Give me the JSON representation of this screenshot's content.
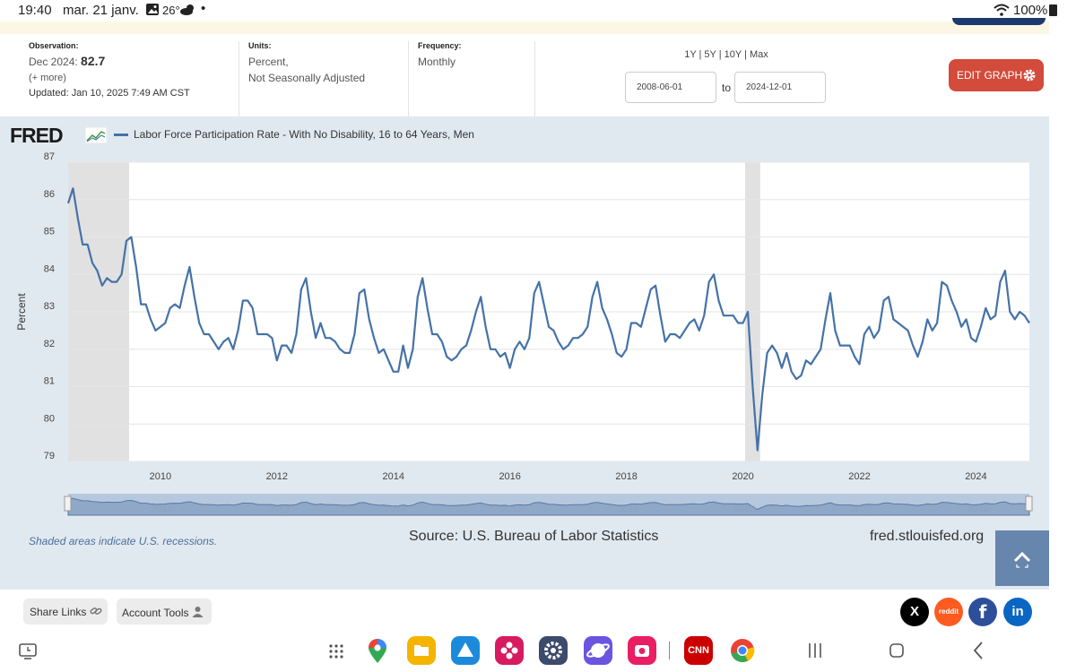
{
  "status": {
    "time": "19:40",
    "date": "mar. 21 janv.",
    "temp": "26°",
    "dot": "•",
    "battery": "100%"
  },
  "meta": {
    "observation_label": "Observation:",
    "observation_date": "Dec 2024:",
    "observation_value": "82.7",
    "more": "(+ more)",
    "updated": "Updated: Jan 10, 2025 7:49 AM CST",
    "units_label": "Units:",
    "units_line1": "Percent,",
    "units_line2": "Not Seasonally Adjusted",
    "frequency_label": "Frequency:",
    "frequency_value": "Monthly",
    "ranges": "1Y | 5Y | 10Y | Max",
    "start_date": "2008-06-01",
    "to_label": "to",
    "end_date": "2024-12-01",
    "edit_button": "EDIT GRAPH"
  },
  "chart_data": {
    "type": "line",
    "title": "Labor Force Participation Rate - With No Disability, 16 to 64 Years, Men",
    "xlabel": "",
    "ylabel": "Percent",
    "ylim": [
      79,
      87
    ],
    "yticks": [
      "79",
      "80",
      "81",
      "82",
      "83",
      "84",
      "85",
      "86",
      "87"
    ],
    "xticks": [
      "2010",
      "2012",
      "2014",
      "2016",
      "2018",
      "2020",
      "2022",
      "2024"
    ],
    "recessions": [
      [
        "2008-06-01",
        "2009-06-01"
      ],
      [
        "2020-02-01",
        "2020-04-01"
      ]
    ],
    "grid": true,
    "series": [
      {
        "name": "Labor Force Participation Rate - With No Disability, 16 to 64 Years, Men",
        "start": "2008-06",
        "frequency": "monthly",
        "values": [
          85.9,
          86.3,
          85.5,
          84.8,
          84.8,
          84.3,
          84.1,
          83.7,
          83.9,
          83.8,
          83.8,
          84.0,
          84.9,
          85.0,
          84.2,
          83.2,
          83.2,
          82.8,
          82.5,
          82.6,
          82.7,
          83.1,
          83.2,
          83.1,
          83.7,
          84.2,
          83.4,
          82.7,
          82.4,
          82.4,
          82.2,
          82.0,
          82.2,
          82.3,
          82.0,
          82.5,
          83.3,
          83.3,
          83.1,
          82.4,
          82.4,
          82.4,
          82.3,
          81.7,
          82.1,
          82.1,
          81.9,
          82.4,
          83.6,
          83.9,
          83.0,
          82.3,
          82.7,
          82.3,
          82.3,
          82.2,
          82.0,
          81.9,
          81.9,
          82.4,
          83.5,
          83.6,
          82.8,
          82.3,
          81.9,
          82.0,
          81.7,
          81.4,
          81.4,
          82.1,
          81.5,
          82.0,
          83.4,
          83.9,
          83.1,
          82.4,
          82.4,
          82.2,
          81.8,
          81.7,
          81.8,
          82.0,
          82.1,
          82.5,
          83.0,
          83.4,
          82.6,
          82.0,
          82.0,
          81.8,
          81.9,
          81.5,
          82.0,
          82.2,
          82.0,
          82.3,
          83.5,
          83.8,
          83.2,
          82.6,
          82.5,
          82.2,
          82.0,
          82.1,
          82.3,
          82.3,
          82.4,
          82.6,
          83.4,
          83.8,
          83.1,
          82.8,
          82.4,
          81.9,
          81.8,
          82.0,
          82.7,
          82.7,
          82.6,
          83.1,
          83.6,
          83.7,
          82.9,
          82.2,
          82.4,
          82.4,
          82.3,
          82.5,
          82.7,
          82.8,
          82.5,
          82.9,
          83.8,
          84.0,
          83.3,
          82.9,
          82.9,
          82.9,
          82.7,
          82.7,
          83.0,
          81.0,
          79.3,
          80.8,
          81.9,
          82.1,
          81.9,
          81.5,
          81.9,
          81.4,
          81.2,
          81.3,
          81.7,
          81.6,
          81.8,
          82.0,
          82.8,
          83.5,
          82.5,
          82.1,
          82.1,
          82.1,
          81.8,
          81.6,
          82.4,
          82.6,
          82.3,
          82.5,
          83.3,
          83.4,
          82.8,
          82.7,
          82.6,
          82.5,
          82.1,
          81.8,
          82.2,
          82.8,
          82.5,
          82.7,
          83.8,
          83.7,
          83.3,
          83.0,
          82.6,
          82.8,
          82.3,
          82.2,
          82.6,
          83.1,
          82.8,
          82.9,
          83.8,
          84.1,
          83.0,
          82.8,
          83.0,
          82.9,
          82.7
        ]
      }
    ]
  },
  "footer": {
    "shade_note": "Shaded areas indicate U.S. recessions.",
    "source": "Source: U.S. Bureau of Labor Statistics",
    "url": "fred.stlouisfed.org",
    "fred_logo": "FRED",
    "share_links": "Share Links",
    "account_tools": "Account Tools"
  },
  "social": [
    "X",
    "reddit",
    "f",
    "in"
  ],
  "colors": {
    "line": "#4572a7",
    "recession": "#e1e1e1",
    "edit": "#d24b3b"
  }
}
